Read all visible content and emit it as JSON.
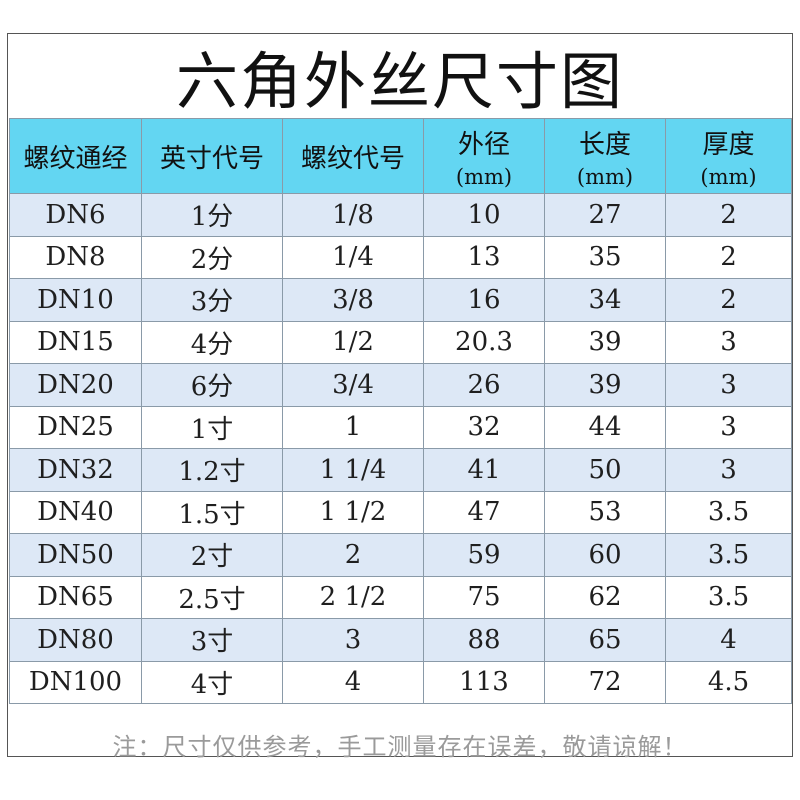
{
  "title": "六角外丝尺寸图",
  "headers": [
    {
      "main": "螺纹通经",
      "unit": ""
    },
    {
      "main": "英寸代号",
      "unit": ""
    },
    {
      "main": "螺纹代号",
      "unit": ""
    },
    {
      "main": "外径",
      "unit": "(mm)"
    },
    {
      "main": "长度",
      "unit": "(mm)"
    },
    {
      "main": "厚度",
      "unit": "(mm)"
    }
  ],
  "rows": [
    [
      "DN6",
      "1分",
      "1/8",
      "10",
      "27",
      "2"
    ],
    [
      "DN8",
      "2分",
      "1/4",
      "13",
      "35",
      "2"
    ],
    [
      "DN10",
      "3分",
      "3/8",
      "16",
      "34",
      "2"
    ],
    [
      "DN15",
      "4分",
      "1/2",
      "20.3",
      "39",
      "3"
    ],
    [
      "DN20",
      "6分",
      "3/4",
      "26",
      "39",
      "3"
    ],
    [
      "DN25",
      "1寸",
      "1",
      "32",
      "44",
      "3"
    ],
    [
      "DN32",
      "1.2寸",
      "1 1/4",
      "41",
      "50",
      "3"
    ],
    [
      "DN40",
      "1.5寸",
      "1 1/2",
      "47",
      "53",
      "3.5"
    ],
    [
      "DN50",
      "2寸",
      "2",
      "59",
      "60",
      "3.5"
    ],
    [
      "DN65",
      "2.5寸",
      "2 1/2",
      "75",
      "62",
      "3.5"
    ],
    [
      "DN80",
      "3寸",
      "3",
      "88",
      "65",
      "4"
    ],
    [
      "DN100",
      "4寸",
      "4",
      "113",
      "72",
      "4.5"
    ]
  ],
  "note": "注：尺寸仅供参考，手工测量存在误差，敬请谅解！",
  "colors": {
    "header_bg": "#63d6f2",
    "stripe_bg": "#dde8f6",
    "note_color": "#9a9a9a"
  }
}
